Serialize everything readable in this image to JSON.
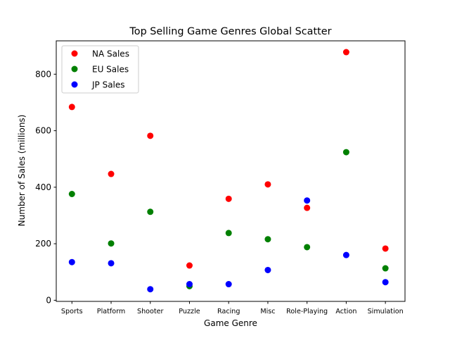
{
  "chart_data": {
    "type": "scatter",
    "title": "Top Selling Game Genres Global Scatter",
    "xlabel": "Game Genre",
    "ylabel": "Number of Sales (millions)",
    "categories": [
      "Sports",
      "Platform",
      "Shooter",
      "Puzzle",
      "Racing",
      "Misc",
      "Role-Playing",
      "Action",
      "Simulation"
    ],
    "ylim": [
      -4,
      918
    ],
    "yticks": [
      0,
      200,
      400,
      600,
      800
    ],
    "grid": false,
    "legend_position": "top-left",
    "series": [
      {
        "name": "NA Sales",
        "color": "#ff0000",
        "values": [
          684,
          447,
          582,
          123,
          359,
          410,
          327,
          878,
          183
        ]
      },
      {
        "name": "EU Sales",
        "color": "#008000",
        "values": [
          376,
          201,
          313,
          50,
          238,
          216,
          188,
          524,
          113
        ]
      },
      {
        "name": "JP Sales",
        "color": "#0000ff",
        "values": [
          135,
          131,
          39,
          57,
          57,
          107,
          353,
          160,
          64
        ]
      }
    ]
  }
}
